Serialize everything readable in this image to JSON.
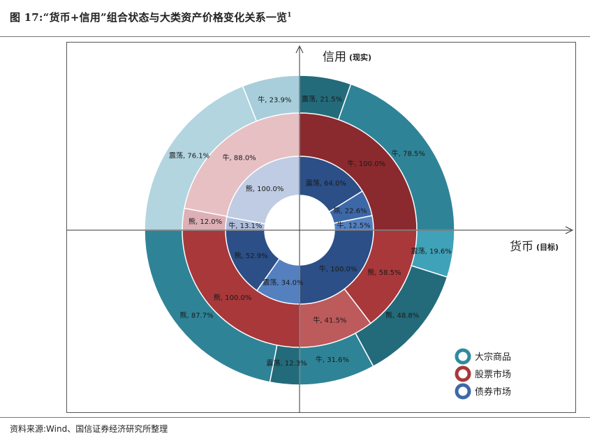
{
  "header": {
    "title": "图 17:“货币+信用”组合状态与大类资产价格变化关系一览",
    "title_sup": "1"
  },
  "footer": {
    "source": "资料来源:Wind、国信证券经济研究所整理"
  },
  "colors": {
    "commodity": "#2E8B9C",
    "stock": "#A8383A",
    "bond": "#3D68A8"
  },
  "chart_data": {
    "type": "pie",
    "subtype": "multi-ring-donut",
    "axes": {
      "y_label": "信用",
      "y_label_note": "(现实)",
      "x_label": "货币",
      "x_label_note": "(目标)"
    },
    "legend": {
      "position": "bottom-right",
      "items": [
        {
          "name": "大宗商品",
          "color": "#2E8B9C"
        },
        {
          "name": "股票市场",
          "color": "#A8383A"
        },
        {
          "name": "债券市场",
          "color": "#3D68A8"
        }
      ]
    },
    "rings": [
      {
        "name": "大宗商品",
        "slices": [
          {
            "label": "震荡",
            "value": 21.5,
            "pct_text": "21.5%"
          },
          {
            "label": "牛",
            "value": 78.5,
            "pct_text": "78.5%"
          },
          {
            "label": "震荡",
            "value": 19.6,
            "pct_text": "19.6%"
          },
          {
            "label": "熊",
            "value": 48.8,
            "pct_text": "48.8%"
          },
          {
            "label": "牛",
            "value": 31.6,
            "pct_text": "31.6%"
          },
          {
            "label": "震荡",
            "value": 12.3,
            "pct_text": "12.3%"
          },
          {
            "label": "熊",
            "value": 87.7,
            "pct_text": "87.7%"
          },
          {
            "label": "震荡",
            "value": 76.1,
            "pct_text": "76.1%"
          },
          {
            "label": "牛",
            "value": 23.9,
            "pct_text": "23.9%"
          }
        ]
      },
      {
        "name": "股票市场",
        "slices": [
          {
            "label": "牛",
            "value": 100.0,
            "pct_text": "100.0%"
          },
          {
            "label": "熊",
            "value": 58.5,
            "pct_text": "58.5%"
          },
          {
            "label": "牛",
            "value": 41.5,
            "pct_text": "41.5%"
          },
          {
            "label": "熊",
            "value": 100.0,
            "pct_text": "100.0%"
          },
          {
            "label": "熊",
            "value": 12.0,
            "pct_text": "12.0%"
          },
          {
            "label": "牛",
            "value": 88.0,
            "pct_text": "88.0%"
          }
        ]
      },
      {
        "name": "债券市场",
        "slices": [
          {
            "label": "震荡",
            "value": 64.0,
            "pct_text": "64.0%"
          },
          {
            "label": "熊",
            "value": 22.6,
            "pct_text": "22.6%"
          },
          {
            "label": "牛",
            "value": 12.5,
            "pct_text": "12.5%"
          },
          {
            "label": "牛",
            "value": 100.0,
            "pct_text": "100.0%"
          },
          {
            "label": "震荡",
            "value": 34.0,
            "pct_text": "34.0%"
          },
          {
            "label": "熊",
            "value": 52.9,
            "pct_text": "52.9%"
          },
          {
            "label": "牛",
            "value": 13.1,
            "pct_text": "13.1%"
          },
          {
            "label": "熊",
            "value": 100.0,
            "pct_text": "100.0%"
          }
        ]
      }
    ]
  }
}
